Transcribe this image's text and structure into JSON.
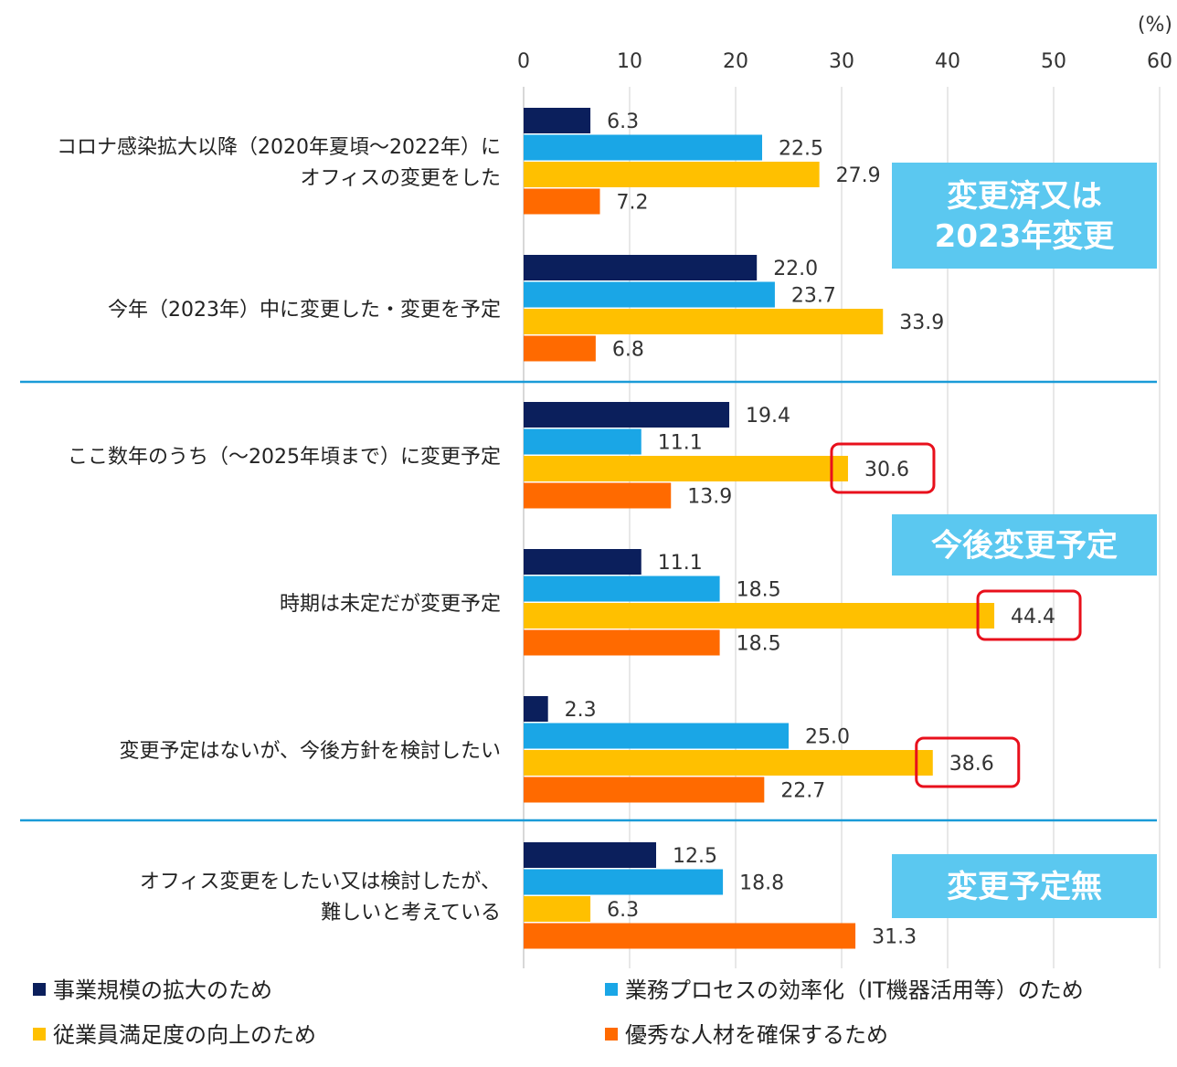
{
  "chart_data": {
    "type": "bar",
    "orientation": "horizontal",
    "unit_label": "(%)",
    "xlim": [
      0,
      60
    ],
    "x_ticks": [
      0,
      10,
      20,
      30,
      40,
      50,
      60
    ],
    "grid": "vertical",
    "legend_position": "bottom",
    "categories": [
      [
        "コロナ感染拡大以降（2020年夏頃～2022年）に",
        "オフィスの変更をした"
      ],
      [
        "今年（2023年）中に変更した・変更を予定"
      ],
      [
        "ここ数年のうち（～2025年頃まで）に変更予定"
      ],
      [
        "時期は未定だが変更予定"
      ],
      [
        "変更予定はないが、今後方針を検討したい"
      ],
      [
        "オフィス変更をしたい又は検討したが、",
        "難しいと考えている"
      ]
    ],
    "series": [
      {
        "name": "事業規模の拡大のため",
        "color": "#0b1f5c",
        "values": [
          6.3,
          22.0,
          19.4,
          11.1,
          2.3,
          12.5
        ]
      },
      {
        "name": "業務プロセスの効率化（IT機器活用等）のため",
        "color": "#1aa6e6",
        "values": [
          22.5,
          23.7,
          11.1,
          18.5,
          25.0,
          18.8
        ]
      },
      {
        "name": "従業員満足度の向上のため",
        "color": "#ffc000",
        "values": [
          27.9,
          33.9,
          30.6,
          44.4,
          38.6,
          6.3
        ]
      },
      {
        "name": "優秀な人材を確保するため",
        "color": "#ff6a00",
        "values": [
          7.2,
          6.8,
          13.9,
          18.5,
          22.7,
          31.3
        ]
      }
    ],
    "group_labels": [
      {
        "text": [
          "変更済又は",
          "2023年変更"
        ],
        "groups": [
          0,
          1
        ]
      },
      {
        "text": [
          "今後変更予定"
        ],
        "groups": [
          2,
          3,
          4
        ]
      },
      {
        "text": [
          "変更予定無"
        ],
        "groups": [
          5
        ]
      }
    ],
    "group_label_color": "#5bc8f0",
    "separator_color": "#1a9bd7",
    "highlighted_values": [
      {
        "category": 2,
        "series": 2
      },
      {
        "category": 3,
        "series": 2
      },
      {
        "category": 4,
        "series": 2
      }
    ],
    "highlight_color": "#e8101c"
  }
}
